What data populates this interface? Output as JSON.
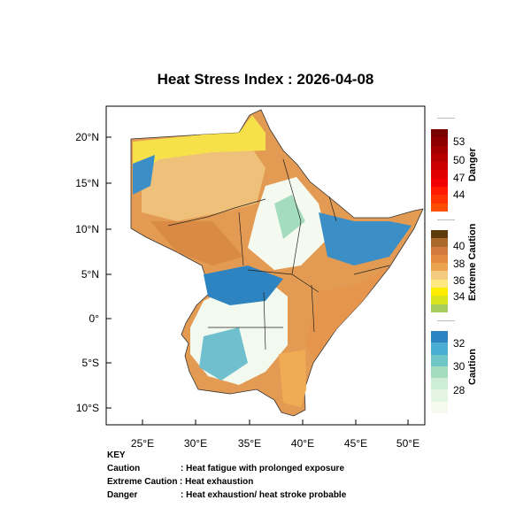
{
  "title": "Heat Stress Index : 2026-04-08",
  "lat_ticks": [
    "20°N",
    "15°N",
    "10°N",
    "5°N",
    "0°",
    "5°S",
    "10°S"
  ],
  "lon_ticks": [
    "25°E",
    "30°E",
    "35°E",
    "40°E",
    "45°E",
    "50°E"
  ],
  "legend": [
    {
      "name": "Danger",
      "labels": [
        "53",
        "50",
        "47",
        "44"
      ],
      "colors": [
        "#7a0000",
        "#8e0000",
        "#a30000",
        "#b80000",
        "#cc0000",
        "#e00000",
        "#f00000",
        "#ff1a00",
        "#ff3300",
        "#ff4d00"
      ]
    },
    {
      "name": "Extreme Caution",
      "labels": [
        "40",
        "38",
        "36",
        "34"
      ],
      "colors": [
        "#5c3a0c",
        "#a9692a",
        "#d07a3c",
        "#e38a40",
        "#eda450",
        "#f4cc80",
        "#ffe880",
        "#ffec00",
        "#d9e41c",
        "#a9cc60"
      ]
    },
    {
      "name": "Caution",
      "labels": [
        "32",
        "30",
        "28"
      ],
      "colors": [
        "#2e84c0",
        "#4aaed3",
        "#6fc6c6",
        "#a4dcc0",
        "#cdeed4",
        "#e4f5e4",
        "#f6fbf0"
      ]
    }
  ],
  "key": {
    "heading": "KEY",
    "rows": [
      {
        "term": "Caution",
        "desc": ": Heat fatigue with prolonged exposure"
      },
      {
        "term": "Extreme Caution",
        "desc": ": Heat exhaustion"
      },
      {
        "term": "Danger",
        "desc": ": Heat exhaustion/ heat stroke probable"
      }
    ]
  }
}
